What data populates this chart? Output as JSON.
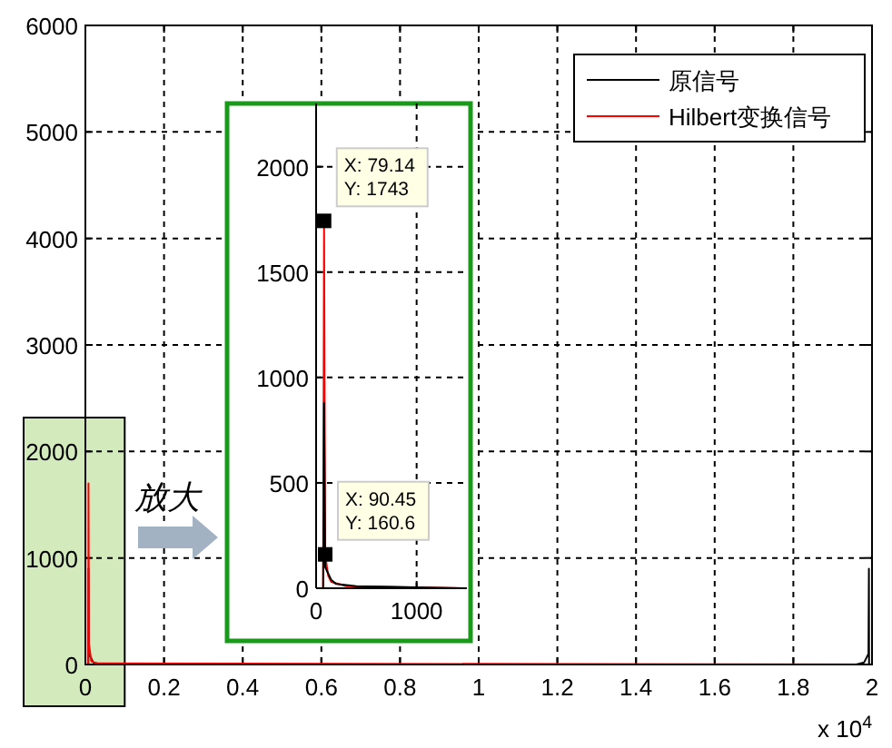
{
  "chart_data": [
    {
      "type": "line",
      "xlim": [
        0,
        2
      ],
      "xticks": [
        0,
        0.2,
        0.4,
        0.6,
        0.8,
        1,
        1.2,
        1.4,
        1.6,
        1.8,
        2
      ],
      "ylim": [
        0,
        6000
      ],
      "yticks": [
        0,
        1000,
        2000,
        3000,
        4000,
        5000,
        6000
      ],
      "grid": true,
      "legend": "top right",
      "bands": [
        {
          "axis": "x",
          "from": 0,
          "to": 0.1,
          "color": "#d3eabd"
        }
      ],
      "series": [
        {
          "name": "原信号",
          "color": "#000000",
          "x": [
            0,
            0.0075,
            0.0079,
            0.009,
            0.02,
            0.04,
            1.96,
            1.98,
            1.991,
            1.9921,
            1.9925,
            2
          ],
          "values": [
            0,
            0,
            900,
            100,
            20,
            0,
            0,
            20,
            100,
            900,
            0,
            0
          ]
        },
        {
          "name": "Hilbert变换信号",
          "color": "#ff0000",
          "x": [
            0,
            0.0075,
            0.0079,
            0.009,
            0.015,
            0.03,
            2
          ],
          "values": [
            0,
            0,
            1700,
            200,
            30,
            10,
            0
          ]
        }
      ],
      "annotations": [
        "x 10$^{4}$",
        {
          "text": "放大"
        }
      ]
    },
    {
      "type": "line",
      "xlim": [
        0,
        1500
      ],
      "xticks": [
        0,
        1000
      ],
      "ylim": [
        0,
        2300
      ],
      "yticks": [
        0,
        500,
        1000,
        1500,
        2000
      ],
      "grid": true,
      "series": [
        {
          "color": "#ff0000",
          "x": [
            0,
            70,
            79.14,
            90.45,
            120,
            150,
            300,
            1500
          ],
          "values": [
            0,
            0,
            1740,
            160,
            60,
            30,
            10,
            0
          ]
        },
        {
          "color": "#000000",
          "x": [
            0,
            70,
            79.14,
            90.45,
            150,
            200,
            400,
            1500
          ],
          "values": [
            0,
            0,
            880,
            100,
            40,
            20,
            10,
            0
          ]
        }
      ],
      "annotations": [
        {
          "text": "X: 79.14\nY: 1743",
          "x": 79.14,
          "y": 1743
        },
        {
          "text": "X: 90.45\nY: 160.6",
          "x": 90.45,
          "y": 160.6
        }
      ]
    }
  ]
}
